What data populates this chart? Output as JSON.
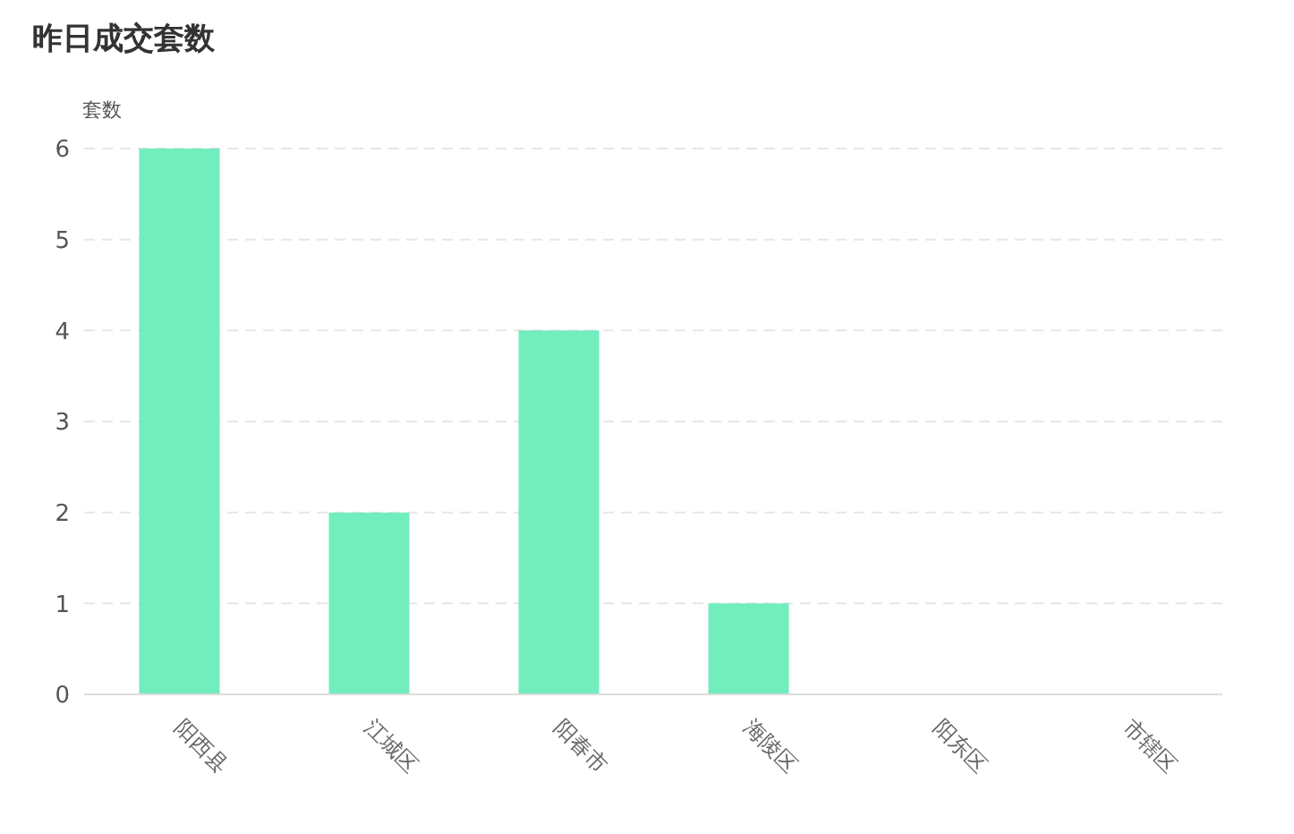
{
  "chart_data": {
    "type": "bar",
    "title": "昨日成交套数",
    "ylabel": "套数",
    "categories": [
      "阳西县",
      "江城区",
      "阳春市",
      "海陵区",
      "阳东区",
      "市辖区"
    ],
    "values": [
      6,
      2,
      4,
      1,
      0,
      0
    ],
    "color": "#72edbe",
    "ylim": [
      0,
      6
    ],
    "yticks": [
      0,
      1,
      2,
      3,
      4,
      5,
      6
    ],
    "grid": "y"
  }
}
